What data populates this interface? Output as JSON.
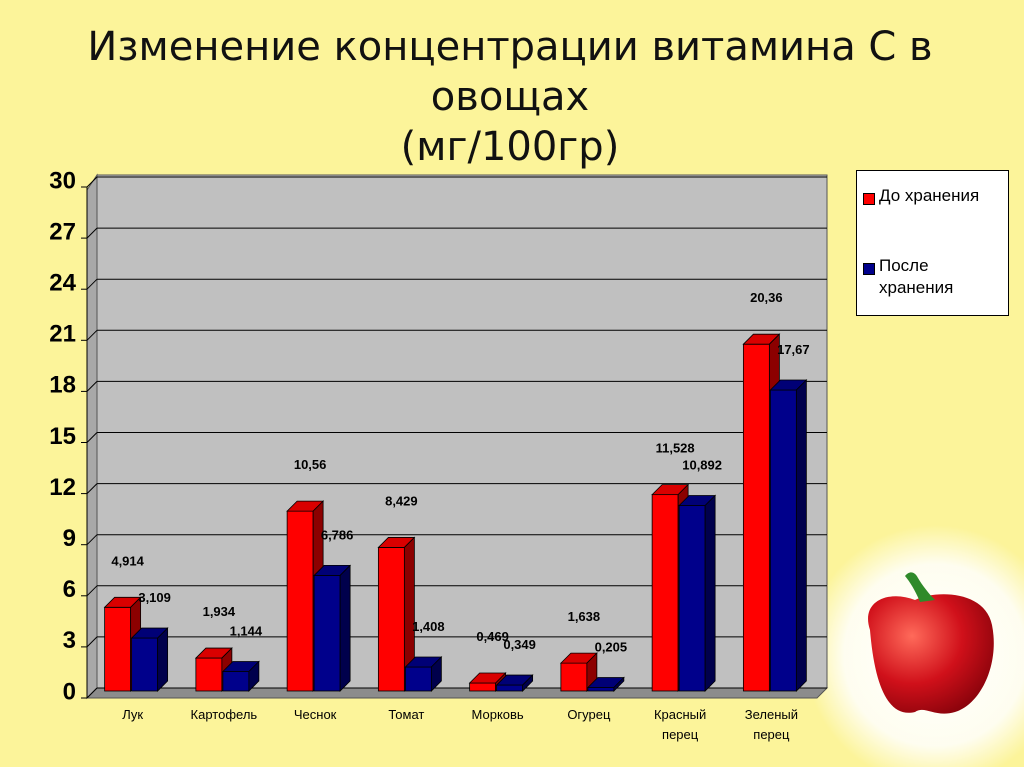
{
  "chart_data": {
    "type": "bar3d",
    "title": "Изменение концентрации витамина С в овощах",
    "subtitle": "(мг/100гр)",
    "categories": [
      "Лук",
      "Картофель",
      "Чеснок",
      "Томат",
      "Морковь",
      "Огурец",
      "Красный перец",
      "Зеленый перец"
    ],
    "series": [
      {
        "name": "До хранения",
        "color": "#ff0000",
        "values": [
          4.914,
          1.934,
          10.56,
          8.429,
          0.469,
          1.638,
          11.528,
          20.36
        ],
        "value_labels": [
          "4,914",
          "1,934",
          "10,56",
          "8,429",
          "0,469",
          "1,638",
          "11,528",
          "20,36"
        ]
      },
      {
        "name": "После хранения",
        "color": "#00008b",
        "values": [
          3.109,
          1.144,
          6.786,
          1.408,
          0.349,
          0.205,
          10.892,
          17.67
        ],
        "value_labels": [
          "3,109",
          "1,144",
          "6,786",
          "1,408",
          "0,349",
          "0,205",
          "10,892",
          "17,67"
        ]
      }
    ],
    "ylim": [
      0,
      30
    ],
    "yticks": [
      0,
      3,
      6,
      9,
      12,
      15,
      18,
      21,
      24,
      27,
      30
    ],
    "grid": true,
    "legend": "right"
  }
}
